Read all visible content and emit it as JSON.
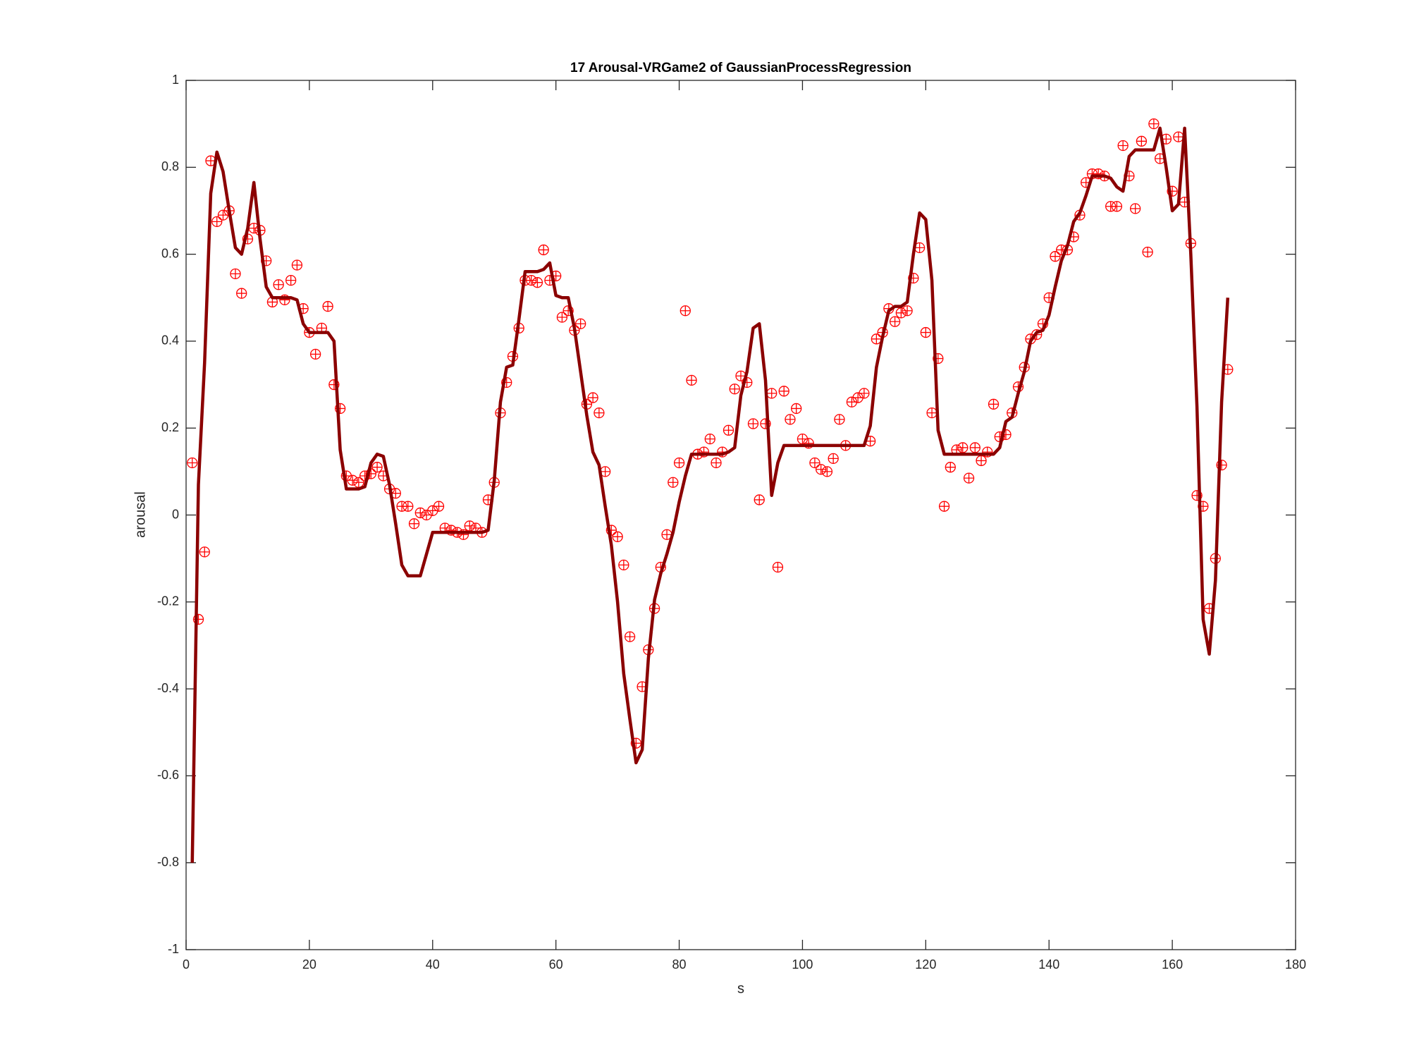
{
  "chart_data": {
    "type": "line",
    "title": "17 Arousal-VRGame2 of GaussianProcessRegression",
    "x_label": "s",
    "y_label": "arousal",
    "x": [
      1,
      2,
      3,
      4,
      5,
      6,
      7,
      8,
      9,
      10,
      11,
      12,
      13,
      14,
      15,
      16,
      17,
      18,
      19,
      20,
      21,
      22,
      23,
      24,
      25,
      26,
      27,
      28,
      29,
      30,
      31,
      32,
      33,
      34,
      35,
      36,
      37,
      38,
      39,
      40,
      41,
      42,
      43,
      44,
      45,
      46,
      47,
      48,
      49,
      50,
      51,
      52,
      53,
      54,
      55,
      56,
      57,
      58,
      59,
      60,
      61,
      62,
      63,
      64,
      65,
      66,
      67,
      68,
      69,
      70,
      71,
      72,
      73,
      74,
      75,
      76,
      77,
      78,
      79,
      80,
      81,
      82,
      83,
      84,
      85,
      86,
      87,
      88,
      89,
      90,
      91,
      92,
      93,
      94,
      95,
      96,
      97,
      98,
      99,
      100,
      101,
      102,
      103,
      104,
      105,
      106,
      107,
      108,
      109,
      110,
      111,
      112,
      113,
      114,
      115,
      116,
      117,
      118,
      119,
      120,
      121,
      122,
      123,
      124,
      125,
      126,
      127,
      128,
      129,
      130,
      131,
      132,
      133,
      134,
      135,
      136,
      137,
      138,
      139,
      140,
      141,
      142,
      143,
      144,
      145,
      146,
      147,
      148,
      149,
      150,
      151,
      152,
      153,
      154,
      155,
      156,
      157,
      158,
      159,
      160,
      161,
      162,
      163,
      164,
      165,
      166,
      167,
      168,
      169
    ],
    "series": [
      {
        "style": "line",
        "color": "#8b0000",
        "values": [
          -0.8,
          0.07,
          0.35,
          0.74,
          0.835,
          0.79,
          0.7,
          0.615,
          0.6,
          0.66,
          0.765,
          0.635,
          0.525,
          0.5,
          0.5,
          0.5,
          0.5,
          0.495,
          0.44,
          0.42,
          0.42,
          0.42,
          0.42,
          0.4,
          0.15,
          0.06,
          0.06,
          0.06,
          0.065,
          0.12,
          0.14,
          0.135,
          0.07,
          -0.02,
          -0.115,
          -0.14,
          -0.14,
          -0.14,
          -0.09,
          -0.04,
          -0.04,
          -0.04,
          -0.04,
          -0.04,
          -0.04,
          -0.04,
          -0.04,
          -0.04,
          -0.035,
          0.08,
          0.26,
          0.34,
          0.345,
          0.45,
          0.56,
          0.56,
          0.56,
          0.565,
          0.58,
          0.505,
          0.5,
          0.5,
          0.43,
          0.33,
          0.23,
          0.145,
          0.115,
          0.02,
          -0.07,
          -0.2,
          -0.365,
          -0.47,
          -0.57,
          -0.54,
          -0.33,
          -0.195,
          -0.135,
          -0.09,
          -0.04,
          0.03,
          0.09,
          0.14,
          0.14,
          0.14,
          0.14,
          0.14,
          0.14,
          0.145,
          0.155,
          0.275,
          0.33,
          0.43,
          0.44,
          0.31,
          0.045,
          0.12,
          0.16,
          0.16,
          0.16,
          0.16,
          0.16,
          0.16,
          0.16,
          0.16,
          0.16,
          0.16,
          0.16,
          0.16,
          0.16,
          0.16,
          0.205,
          0.34,
          0.41,
          0.47,
          0.48,
          0.48,
          0.49,
          0.6,
          0.695,
          0.68,
          0.54,
          0.195,
          0.14,
          0.14,
          0.14,
          0.14,
          0.14,
          0.14,
          0.14,
          0.14,
          0.14,
          0.155,
          0.215,
          0.225,
          0.28,
          0.33,
          0.4,
          0.42,
          0.425,
          0.46,
          0.525,
          0.585,
          0.62,
          0.675,
          0.695,
          0.735,
          0.78,
          0.78,
          0.78,
          0.775,
          0.755,
          0.745,
          0.825,
          0.84,
          0.84,
          0.84,
          0.84,
          0.89,
          0.8,
          0.7,
          0.715,
          0.89,
          0.6,
          0.25,
          -0.24,
          -0.32,
          -0.15,
          0.26,
          0.5
        ]
      },
      {
        "style": "marker",
        "color": "#ff0000",
        "values": [
          0.12,
          -0.24,
          -0.085,
          0.815,
          0.675,
          0.69,
          0.7,
          0.555,
          0.51,
          0.635,
          0.66,
          0.655,
          0.585,
          0.49,
          0.53,
          0.495,
          0.54,
          0.575,
          0.475,
          0.42,
          0.37,
          0.43,
          0.48,
          0.3,
          0.245,
          0.09,
          0.08,
          0.075,
          0.09,
          0.095,
          0.11,
          0.09,
          0.06,
          0.05,
          0.02,
          0.02,
          -0.02,
          0.005,
          0.0,
          0.01,
          0.02,
          -0.03,
          -0.035,
          -0.04,
          -0.045,
          -0.025,
          -0.03,
          -0.04,
          0.035,
          0.075,
          0.235,
          0.305,
          0.365,
          0.43,
          0.54,
          0.54,
          0.535,
          0.61,
          0.54,
          0.55,
          0.455,
          0.47,
          0.425,
          0.44,
          0.255,
          0.27,
          0.235,
          0.1,
          -0.035,
          -0.05,
          -0.115,
          -0.28,
          -0.525,
          -0.395,
          -0.31,
          -0.215,
          -0.12,
          -0.045,
          0.075,
          0.12,
          0.47,
          0.31,
          0.14,
          0.145,
          0.175,
          0.12,
          0.145,
          0.195,
          0.29,
          0.32,
          0.305,
          0.21,
          0.035,
          0.21,
          0.28,
          -0.12,
          0.285,
          0.22,
          0.245,
          0.175,
          0.165,
          0.12,
          0.105,
          0.1,
          0.13,
          0.22,
          0.16,
          0.26,
          0.27,
          0.28,
          0.17,
          0.405,
          0.42,
          0.475,
          0.445,
          0.465,
          0.47,
          0.545,
          0.615,
          0.42,
          0.235,
          0.36,
          0.02,
          0.11,
          0.15,
          0.155,
          0.085,
          0.155,
          0.125,
          0.145,
          0.255,
          0.18,
          0.185,
          0.235,
          0.295,
          0.34,
          0.405,
          0.415,
          0.44,
          0.5,
          0.595,
          0.61,
          0.61,
          0.64,
          0.69,
          0.765,
          0.785,
          0.785,
          0.78,
          0.71,
          0.71,
          0.85,
          0.78,
          0.705,
          0.86,
          0.605,
          0.9,
          0.82,
          0.865,
          0.745,
          0.87,
          0.72,
          0.625,
          0.045,
          0.02,
          -0.215,
          -0.1,
          0.115,
          0.335
        ]
      }
    ],
    "xlim": [
      0,
      180
    ],
    "xticks": [
      0,
      20,
      40,
      60,
      80,
      100,
      120,
      140,
      160,
      180
    ],
    "ylim": [
      -1,
      1
    ],
    "yticks": [
      -1,
      -0.8,
      -0.6,
      -0.4,
      -0.2,
      0,
      0.2,
      0.4,
      0.6,
      0.8,
      1
    ]
  }
}
